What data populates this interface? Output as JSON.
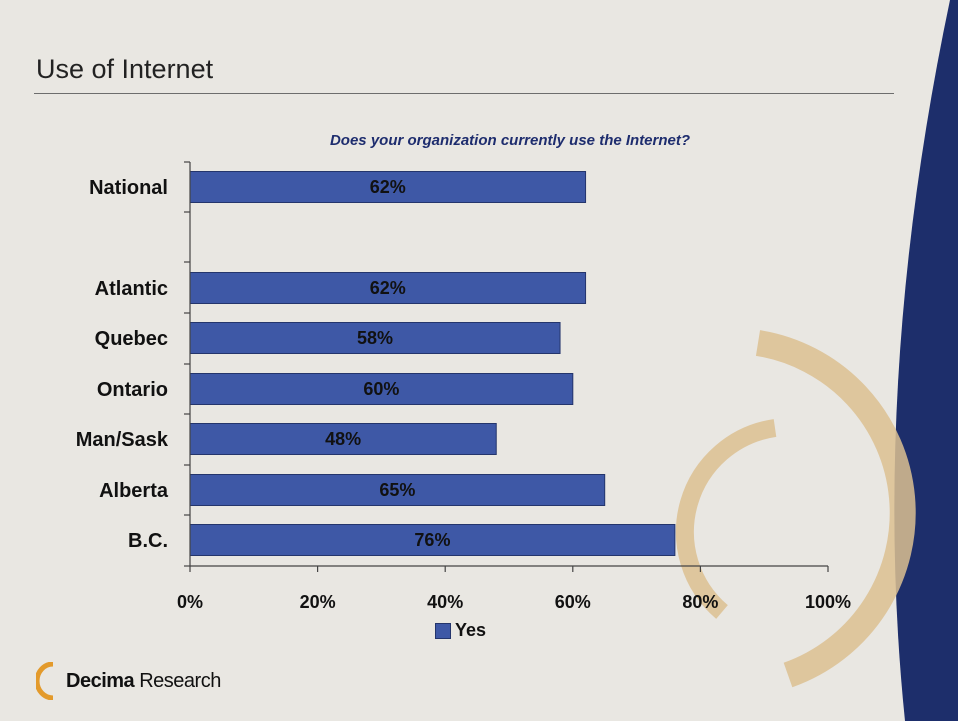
{
  "slide": {
    "title": "Use of Internet",
    "question": "Does your organization currently use the Internet?"
  },
  "logo": {
    "brand": "Decima",
    "suffix": "Research"
  },
  "colors": {
    "bar": "#3e58a6",
    "bar_border": "#24356c",
    "accent_arc": "#dcc090",
    "navy_band": "#1d2e6b"
  },
  "chart_data": {
    "type": "bar",
    "orientation": "horizontal",
    "categories": [
      "National",
      "Atlantic",
      "Quebec",
      "Ontario",
      "Man/Sask",
      "Alberta",
      "B.C."
    ],
    "series": [
      {
        "name": "Yes",
        "values": [
          62,
          62,
          58,
          60,
          48,
          65,
          76
        ]
      }
    ],
    "data_labels": [
      "62%",
      "62%",
      "58%",
      "60%",
      "48%",
      "65%",
      "76%"
    ],
    "title": "Does your organization currently use the Internet?",
    "xlabel": "",
    "ylabel": "",
    "xlim": [
      0,
      100
    ],
    "x_ticks": [
      "0%",
      "20%",
      "40%",
      "60%",
      "80%",
      "100%"
    ],
    "grid": false,
    "legend": "bottom"
  }
}
